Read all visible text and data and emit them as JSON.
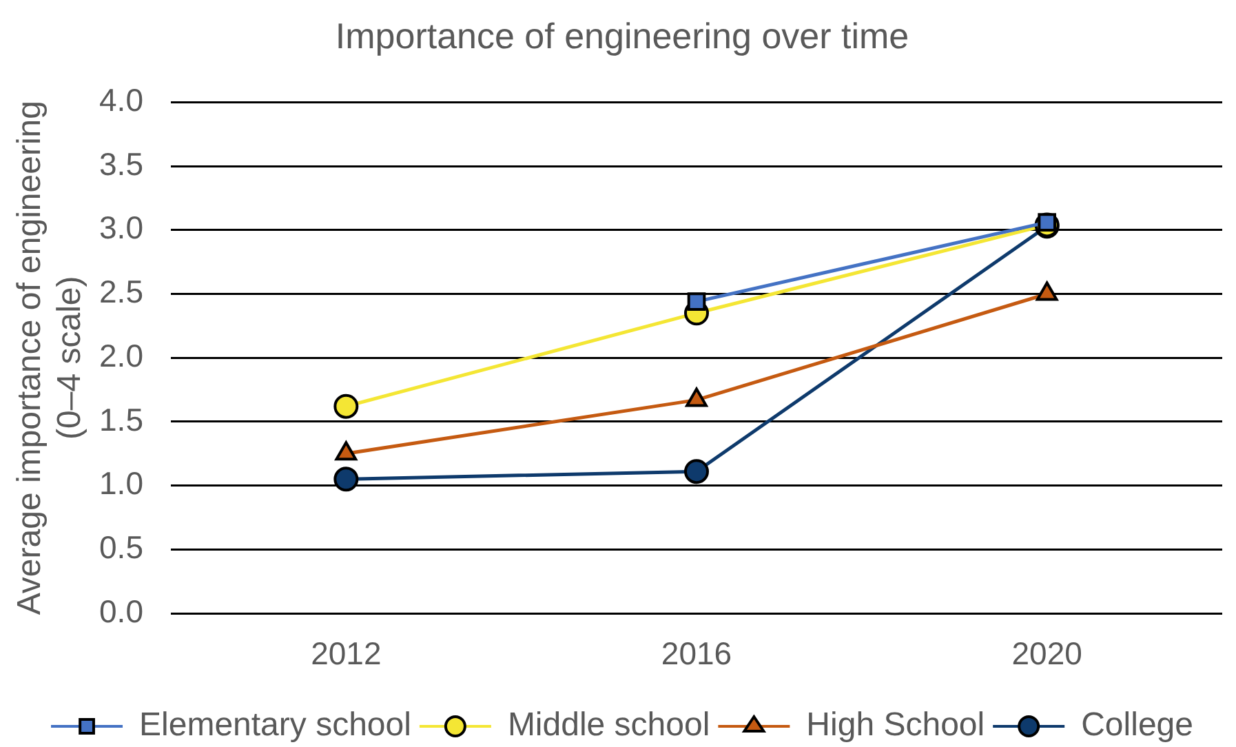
{
  "chart_data": {
    "type": "line",
    "title": "Importance of engineering over time",
    "ylabel": "Average importance of engineering (0–4 scale)",
    "categories": [
      "2012",
      "2016",
      "2020"
    ],
    "series": [
      {
        "name": "Elementary school",
        "color": "#4472c4",
        "marker": "square",
        "values": [
          null,
          2.44,
          3.06
        ]
      },
      {
        "name": "Middle school",
        "color": "#f4e634",
        "marker": "circle",
        "values": [
          1.62,
          2.35,
          3.04
        ]
      },
      {
        "name": "High School",
        "color": "#c55a11",
        "marker": "triangle",
        "values": [
          1.25,
          1.67,
          2.5
        ]
      },
      {
        "name": "College",
        "color": "#0e3a6c",
        "marker": "circle",
        "values": [
          1.05,
          1.11,
          3.03
        ]
      }
    ],
    "ylim": [
      0,
      4
    ],
    "yticks": [
      {
        "value": 0,
        "label": "0.0"
      },
      {
        "value": 0.5,
        "label": "0.5"
      },
      {
        "value": 1,
        "label": "1.0"
      },
      {
        "value": 1.5,
        "label": "1.5"
      },
      {
        "value": 2,
        "label": "2.0"
      },
      {
        "value": 2.5,
        "label": "2.5"
      },
      {
        "value": 3,
        "label": "3.0"
      },
      {
        "value": 3.5,
        "label": "3.5"
      },
      {
        "value": 4,
        "label": "4.0"
      }
    ],
    "grid": "y",
    "legend": "bottom"
  }
}
